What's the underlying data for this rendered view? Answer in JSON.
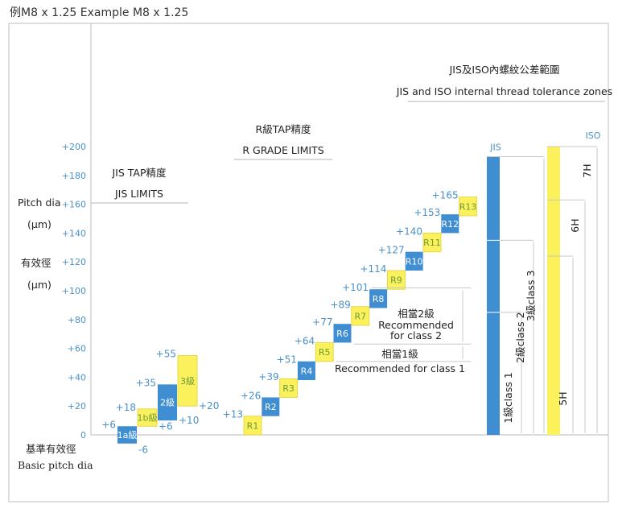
{
  "header": {
    "title": "例M8 x 1.25 Example M8 x 1.25"
  },
  "colors": {
    "blue": "#3f8ed2",
    "yellow": "#fbf15c",
    "tick": "#4a90c8",
    "grid": "#c8c8c8"
  },
  "chart_data": {
    "type": "bar",
    "title": "例M8 x 1.25 Example M8 x 1.25",
    "ylabel_en": "Pitch dia",
    "ylabel_unit": "(μm)",
    "ylabel_zh": "有效徑",
    "ylabel_zh_unit": "(μm)",
    "baseline_label_zh": "基準有效徑",
    "baseline_label_en": "Basic pitch dia",
    "yticks": [
      "+200",
      "+180",
      "+160",
      "+140",
      "+120",
      "+100",
      "+80",
      "+60",
      "+40",
      "+20",
      "0"
    ],
    "ytick_values": [
      200,
      180,
      160,
      140,
      120,
      100,
      80,
      60,
      40,
      20,
      0
    ],
    "ylim": [
      -10,
      210
    ],
    "groups": [
      {
        "title_zh": "JIS TAP精度",
        "title_en": "JIS LIMITS",
        "bars": [
          {
            "label": "1a級",
            "low": -6,
            "high": 6,
            "color": "blue",
            "low_label": "-6",
            "high_label": "+6"
          },
          {
            "label": "1b級",
            "low": 6,
            "high": 18,
            "color": "yellow",
            "low_label": "+6",
            "high_label": "+18"
          },
          {
            "label": "2級",
            "low": 10,
            "high": 35,
            "color": "blue",
            "low_label": "+10",
            "high_label": "+35"
          },
          {
            "label": "3級",
            "low": 20,
            "high": 55,
            "color": "yellow",
            "low_label": "+20",
            "high_label": "+55"
          }
        ]
      },
      {
        "title_zh": "R級TAP精度",
        "title_en": "R GRADE LIMITS",
        "bars": [
          {
            "label": "R1",
            "high": 13,
            "color": "yellow",
            "high_label": "+13"
          },
          {
            "label": "R2",
            "high": 26,
            "color": "blue",
            "high_label": "+26"
          },
          {
            "label": "R3",
            "high": 39,
            "color": "yellow",
            "high_label": "+39"
          },
          {
            "label": "R4",
            "high": 51,
            "color": "blue",
            "high_label": "+51"
          },
          {
            "label": "R5",
            "high": 64,
            "color": "yellow",
            "high_label": "+64"
          },
          {
            "label": "R6",
            "high": 77,
            "color": "blue",
            "high_label": "+77"
          },
          {
            "label": "R7",
            "high": 89,
            "color": "yellow",
            "high_label": "+89"
          },
          {
            "label": "R8",
            "high": 101,
            "color": "blue",
            "high_label": "+101"
          },
          {
            "label": "R9",
            "high": 114,
            "color": "yellow",
            "high_label": "+114"
          },
          {
            "label": "R10",
            "high": 127,
            "color": "blue",
            "high_label": "+127"
          },
          {
            "label": "R11",
            "high": 140,
            "color": "yellow",
            "high_label": "+140"
          },
          {
            "label": "R12",
            "high": 153,
            "color": "blue",
            "high_label": "+153"
          },
          {
            "label": "R13",
            "high": 165,
            "color": "yellow",
            "high_label": "+165"
          }
        ],
        "recommendations": [
          {
            "zh": "相當2級",
            "en1": "Recommended",
            "en2": "for class 2",
            "low": 63,
            "high": 102
          },
          {
            "zh": "相當1級",
            "en1": "Recommended for class 1",
            "low": 51,
            "high": 63
          }
        ]
      },
      {
        "title_zh": "JIS及ISO內螺紋公差範圍",
        "title_en": "JIS and ISO internal thread tolerance zones",
        "jis": {
          "label": "JIS",
          "top": 193,
          "zones": [
            {
              "label": "1級class 1",
              "low": 0,
              "high": 85
            },
            {
              "label": "2級class 2",
              "low": 0,
              "high": 135
            },
            {
              "label": "3級class 3",
              "low": 0,
              "high": 193
            }
          ]
        },
        "iso": {
          "label": "ISO",
          "top": 200,
          "zones": [
            {
              "label": "5H",
              "low": 0,
              "high": 124
            },
            {
              "label": "6H",
              "low": 0,
              "high": 163
            },
            {
              "label": "7H",
              "low": 0,
              "high": 200
            }
          ]
        }
      }
    ]
  }
}
